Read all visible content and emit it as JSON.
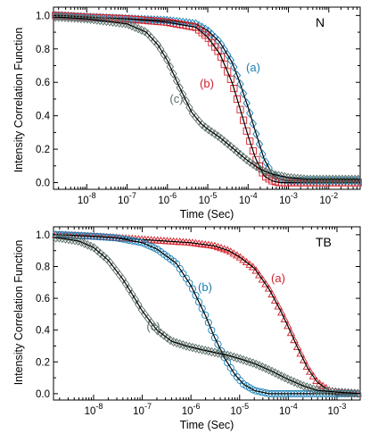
{
  "figure": {
    "ylabel": "Intensity Correlation Function"
  },
  "chart_data": [
    {
      "type": "scatter",
      "panel_label": "N",
      "xlabel": "Time (Sec)",
      "ylabel": "Intensity Correlation Function",
      "xscale": "log",
      "xlim": [
        1.5e-09,
        0.06
      ],
      "ylim": [
        -0.04,
        1.05
      ],
      "y_ticks": [
        "0.0",
        "0.2",
        "0.4",
        "0.6",
        "0.8",
        "1.0"
      ],
      "x_tick_exponents": [
        -8,
        -7,
        -6,
        -5,
        -4,
        -3,
        -2
      ],
      "series": [
        {
          "name": "(a)",
          "color": "#1a7fb5",
          "marker": "diamond",
          "x": [
            2e-09,
            1e-08,
            1e-07,
            1e-06,
            5e-06,
            1e-05,
            2e-05,
            4e-05,
            6e-05,
            0.0001,
            0.00015,
            0.00025,
            0.0004,
            0.0006,
            0.001,
            0.002,
            0.005,
            0.01,
            0.05
          ],
          "y": [
            1.0,
            0.99,
            0.98,
            0.97,
            0.95,
            0.91,
            0.84,
            0.72,
            0.61,
            0.45,
            0.31,
            0.14,
            0.05,
            0.02,
            0.01,
            0.01,
            0.01,
            0.01,
            0.01
          ]
        },
        {
          "name": "(b)",
          "color": "#d2202a",
          "marker": "square",
          "x": [
            2e-09,
            1e-08,
            1e-07,
            1e-06,
            5e-06,
            1e-05,
            2e-05,
            4e-05,
            6e-05,
            0.0001,
            0.00015,
            0.00025,
            0.0004,
            0.0006,
            0.001,
            0.002,
            0.005,
            0.01,
            0.05
          ],
          "y": [
            1.0,
            0.99,
            0.98,
            0.96,
            0.93,
            0.87,
            0.77,
            0.6,
            0.46,
            0.28,
            0.15,
            0.04,
            0.01,
            0.0,
            0.0,
            0.0,
            0.0,
            0.0,
            0.0
          ]
        },
        {
          "name": "(c)",
          "color": "#5a6e66",
          "marker": "diamond",
          "x": [
            2e-09,
            1e-08,
            1e-07,
            3e-07,
            6e-07,
            1e-06,
            2e-06,
            4e-06,
            7e-06,
            1e-05,
            2e-05,
            4e-05,
            7e-05,
            0.0001,
            0.0002,
            0.0004,
            0.001,
            0.003,
            0.01,
            0.05
          ],
          "y": [
            0.99,
            0.98,
            0.95,
            0.9,
            0.82,
            0.73,
            0.57,
            0.42,
            0.35,
            0.32,
            0.27,
            0.21,
            0.16,
            0.13,
            0.08,
            0.05,
            0.03,
            0.02,
            0.02,
            0.02
          ]
        }
      ]
    },
    {
      "type": "scatter",
      "panel_label": "TB",
      "xlabel": "Time (Sec)",
      "ylabel": "Intensity Correlation Function",
      "xscale": "log",
      "xlim": [
        1.5e-09,
        0.003
      ],
      "ylim": [
        -0.04,
        1.05
      ],
      "y_ticks": [
        "0.0",
        "0.2",
        "0.4",
        "0.6",
        "0.8",
        "1.0"
      ],
      "x_tick_exponents": [
        -8,
        -7,
        -6,
        -5,
        -4,
        -3
      ],
      "series": [
        {
          "name": "(a)",
          "color": "#d2202a",
          "marker": "triangle",
          "x": [
            2e-09,
            1e-08,
            1e-07,
            1e-06,
            3e-06,
            6e-06,
            1e-05,
            2e-05,
            4e-05,
            7e-05,
            0.0001,
            0.00015,
            0.00025,
            0.0004,
            0.0007,
            0.001,
            0.002,
            0.003
          ],
          "y": [
            1.0,
            0.99,
            0.97,
            0.95,
            0.93,
            0.9,
            0.86,
            0.79,
            0.66,
            0.52,
            0.42,
            0.3,
            0.16,
            0.07,
            0.02,
            0.01,
            0.0,
            0.0
          ]
        },
        {
          "name": "(b)",
          "color": "#1a7fb5",
          "marker": "circle",
          "x": [
            2e-09,
            1e-08,
            3e-08,
            1e-07,
            2e-07,
            5e-07,
            1e-06,
            2e-06,
            3e-06,
            5e-06,
            8e-06,
            1.2e-05,
            2e-05,
            4e-05,
            0.0001,
            0.0003,
            0.001,
            0.003
          ],
          "y": [
            1.0,
            0.99,
            0.98,
            0.95,
            0.91,
            0.82,
            0.68,
            0.49,
            0.36,
            0.22,
            0.12,
            0.06,
            0.02,
            0.0,
            0.0,
            0.0,
            0.0,
            0.0
          ]
        },
        {
          "name": "(c)",
          "color": "#5a6e66",
          "marker": "diamond",
          "x": [
            2e-09,
            5e-09,
            1e-08,
            2e-08,
            4e-08,
            7e-08,
            1e-07,
            2e-07,
            4e-07,
            8e-07,
            1.5e-06,
            3e-06,
            6e-06,
            1e-05,
            2e-05,
            4e-05,
            0.0001,
            0.0002,
            0.0004,
            0.001,
            0.003
          ],
          "y": [
            0.98,
            0.96,
            0.92,
            0.84,
            0.72,
            0.6,
            0.52,
            0.4,
            0.33,
            0.3,
            0.28,
            0.26,
            0.24,
            0.22,
            0.19,
            0.15,
            0.09,
            0.05,
            0.02,
            0.01,
            0.0
          ]
        }
      ]
    }
  ]
}
